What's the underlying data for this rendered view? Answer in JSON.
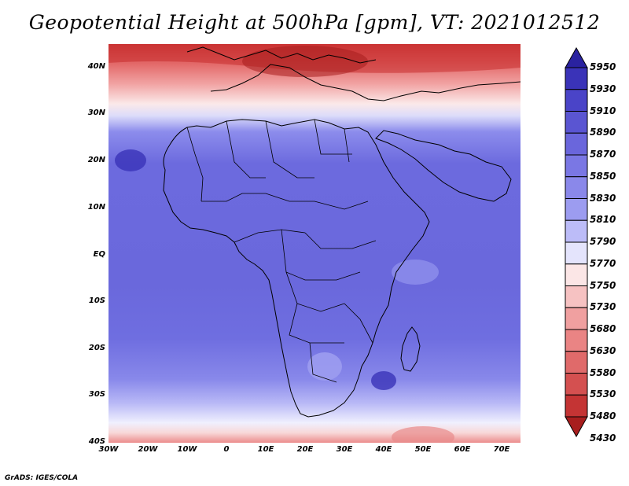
{
  "title": "Geopotential Height at 500hPa [gpm], VT: 2021012512",
  "footer": "GrADS: IGES/COLA",
  "map": {
    "lat_labels": [
      "40N",
      "30N",
      "20N",
      "10N",
      "EQ",
      "10S",
      "20S",
      "30S",
      "40S"
    ],
    "lon_labels": [
      "30W",
      "20W",
      "10W",
      "0",
      "10E",
      "20E",
      "30E",
      "40E",
      "50E",
      "60E",
      "70E"
    ]
  },
  "colorbar": {
    "labels": [
      "5950",
      "5930",
      "5910",
      "5890",
      "5870",
      "5850",
      "5830",
      "5810",
      "5790",
      "5770",
      "5750",
      "5730",
      "5680",
      "5630",
      "5580",
      "5530",
      "5480",
      "5430"
    ],
    "colors": [
      "#2a22a0",
      "#3a33b8",
      "#4a44c8",
      "#5a55d2",
      "#6a66dc",
      "#7a77e4",
      "#8a88ea",
      "#9c9cf0",
      "#bcbcf8",
      "#e4e4fc",
      "#fbe6e6",
      "#f6c2c2",
      "#f0a0a0",
      "#ea8484",
      "#e06a6a",
      "#d45050",
      "#c43434",
      "#a81e1e"
    ]
  }
}
